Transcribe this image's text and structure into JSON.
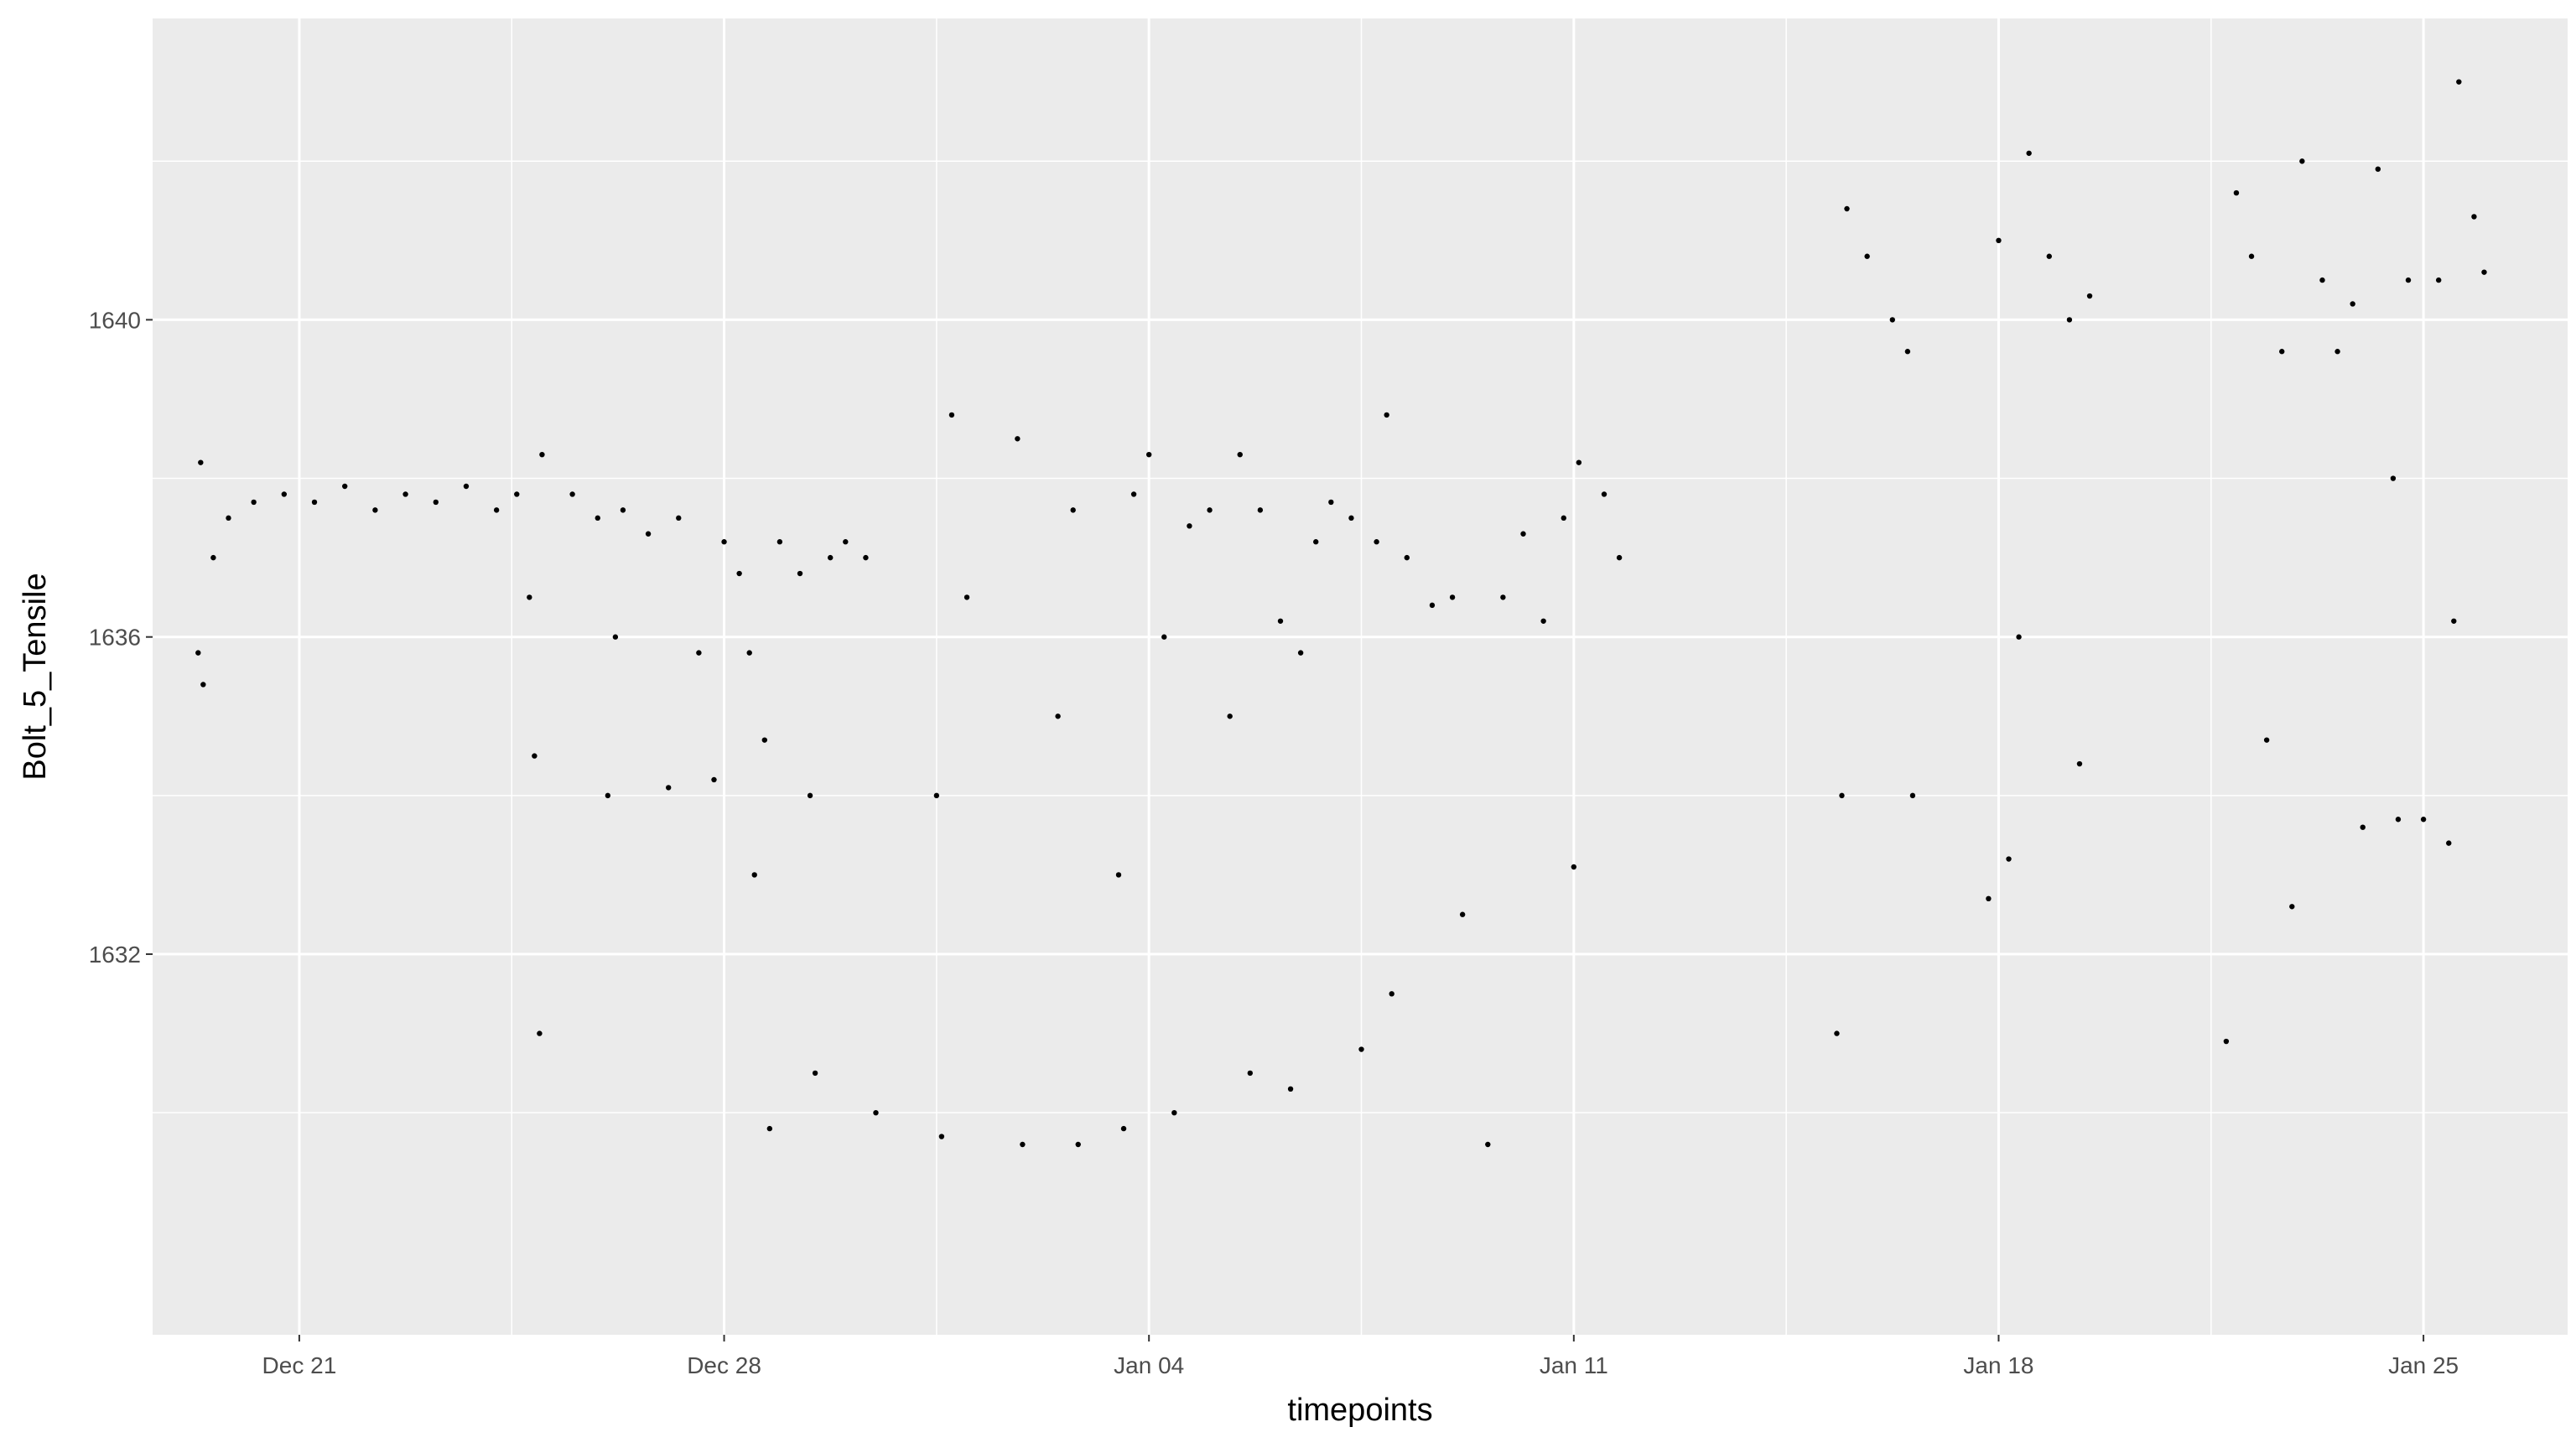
{
  "chart_data": {
    "type": "scatter",
    "title": "",
    "xlabel": "timepoints",
    "ylabel": "Bolt_5_Tensile",
    "x_axis_type": "date",
    "xlim": [
      "2023-12-18T14:00",
      "2024-01-27T09:00"
    ],
    "ylim": [
      1627.2,
      1643.8
    ],
    "x_ticks": [
      {
        "date": "2023-12-21",
        "label": "Dec 21"
      },
      {
        "date": "2023-12-28",
        "label": "Dec 28"
      },
      {
        "date": "2024-01-04",
        "label": "Jan 04"
      },
      {
        "date": "2024-01-11",
        "label": "Jan 11"
      },
      {
        "date": "2024-01-18",
        "label": "Jan 18"
      },
      {
        "date": "2024-01-25",
        "label": "Jan 25"
      }
    ],
    "y_ticks": [
      1632,
      1636,
      1640
    ],
    "y_minor_gridlines": [
      1630,
      1634,
      1638,
      1642
    ],
    "grid": true,
    "panel_background": "#ebebeb",
    "grid_color": "#ffffff",
    "point_color": "#000000",
    "legend": "none",
    "series": [
      {
        "points": [
          [
            "2023-12-19T08:00",
            1635.8
          ],
          [
            "2023-12-19T09:00",
            1638.2
          ],
          [
            "2023-12-19T10:00",
            1635.4
          ],
          [
            "2023-12-19T14:00",
            1637.0
          ],
          [
            "2023-12-19T20:00",
            1637.5
          ],
          [
            "2023-12-20T06:00",
            1637.7
          ],
          [
            "2023-12-20T18:00",
            1637.8
          ],
          [
            "2023-12-21T06:00",
            1637.7
          ],
          [
            "2023-12-21T18:00",
            1637.9
          ],
          [
            "2023-12-22T06:00",
            1637.6
          ],
          [
            "2023-12-22T18:00",
            1637.8
          ],
          [
            "2023-12-23T06:00",
            1637.7
          ],
          [
            "2023-12-23T18:00",
            1637.9
          ],
          [
            "2023-12-24T06:00",
            1637.6
          ],
          [
            "2023-12-24T14:00",
            1637.8
          ],
          [
            "2023-12-24T19:00",
            1636.5
          ],
          [
            "2023-12-24T21:00",
            1634.5
          ],
          [
            "2023-12-24T23:00",
            1631.0
          ],
          [
            "2023-12-25T00:00",
            1638.3
          ],
          [
            "2023-12-25T12:00",
            1637.8
          ],
          [
            "2023-12-25T22:00",
            1637.5
          ],
          [
            "2023-12-26T02:00",
            1634.0
          ],
          [
            "2023-12-26T05:00",
            1636.0
          ],
          [
            "2023-12-26T08:00",
            1637.6
          ],
          [
            "2023-12-26T18:00",
            1637.3
          ],
          [
            "2023-12-27T02:00",
            1634.1
          ],
          [
            "2023-12-27T06:00",
            1637.5
          ],
          [
            "2023-12-27T14:00",
            1635.8
          ],
          [
            "2023-12-27T20:00",
            1634.2
          ],
          [
            "2023-12-28T00:00",
            1637.2
          ],
          [
            "2023-12-28T06:00",
            1636.8
          ],
          [
            "2023-12-28T10:00",
            1635.8
          ],
          [
            "2023-12-28T12:00",
            1633.0
          ],
          [
            "2023-12-28T16:00",
            1634.7
          ],
          [
            "2023-12-28T18:00",
            1629.8
          ],
          [
            "2023-12-28T22:00",
            1637.2
          ],
          [
            "2023-12-29T06:00",
            1636.8
          ],
          [
            "2023-12-29T10:00",
            1634.0
          ],
          [
            "2023-12-29T12:00",
            1630.5
          ],
          [
            "2023-12-29T18:00",
            1637.0
          ],
          [
            "2023-12-30T00:00",
            1637.2
          ],
          [
            "2023-12-30T08:00",
            1637.0
          ],
          [
            "2023-12-30T12:00",
            1630.0
          ],
          [
            "2023-12-31T12:00",
            1634.0
          ],
          [
            "2023-12-31T14:00",
            1629.7
          ],
          [
            "2023-12-31T18:00",
            1638.8
          ],
          [
            "2024-01-01T00:00",
            1636.5
          ],
          [
            "2024-01-01T20:00",
            1638.5
          ],
          [
            "2024-01-01T22:00",
            1629.6
          ],
          [
            "2024-01-02T12:00",
            1635.0
          ],
          [
            "2024-01-02T18:00",
            1637.6
          ],
          [
            "2024-01-02T20:00",
            1629.6
          ],
          [
            "2024-01-03T12:00",
            1633.0
          ],
          [
            "2024-01-03T14:00",
            1629.8
          ],
          [
            "2024-01-03T18:00",
            1637.8
          ],
          [
            "2024-01-04T00:00",
            1638.3
          ],
          [
            "2024-01-04T06:00",
            1636.0
          ],
          [
            "2024-01-04T10:00",
            1630.0
          ],
          [
            "2024-01-04T16:00",
            1637.4
          ],
          [
            "2024-01-05T00:00",
            1637.6
          ],
          [
            "2024-01-05T08:00",
            1635.0
          ],
          [
            "2024-01-05T12:00",
            1638.3
          ],
          [
            "2024-01-05T16:00",
            1630.5
          ],
          [
            "2024-01-05T20:00",
            1637.6
          ],
          [
            "2024-01-06T04:00",
            1636.2
          ],
          [
            "2024-01-06T08:00",
            1630.3
          ],
          [
            "2024-01-06T12:00",
            1635.8
          ],
          [
            "2024-01-06T18:00",
            1637.2
          ],
          [
            "2024-01-07T00:00",
            1637.7
          ],
          [
            "2024-01-07T08:00",
            1637.5
          ],
          [
            "2024-01-07T12:00",
            1630.8
          ],
          [
            "2024-01-07T18:00",
            1637.2
          ],
          [
            "2024-01-07T22:00",
            1638.8
          ],
          [
            "2024-01-08T00:00",
            1631.5
          ],
          [
            "2024-01-08T06:00",
            1637.0
          ],
          [
            "2024-01-08T16:00",
            1636.4
          ],
          [
            "2024-01-09T00:00",
            1636.5
          ],
          [
            "2024-01-09T04:00",
            1632.5
          ],
          [
            "2024-01-09T14:00",
            1629.6
          ],
          [
            "2024-01-09T20:00",
            1636.5
          ],
          [
            "2024-01-10T04:00",
            1637.3
          ],
          [
            "2024-01-10T12:00",
            1636.2
          ],
          [
            "2024-01-10T20:00",
            1637.5
          ],
          [
            "2024-01-11T00:00",
            1633.1
          ],
          [
            "2024-01-11T02:00",
            1638.2
          ],
          [
            "2024-01-11T12:00",
            1637.8
          ],
          [
            "2024-01-11T18:00",
            1637.0
          ],
          [
            "2024-01-15T08:00",
            1631.0
          ],
          [
            "2024-01-15T10:00",
            1634.0
          ],
          [
            "2024-01-15T12:00",
            1641.4
          ],
          [
            "2024-01-15T20:00",
            1640.8
          ],
          [
            "2024-01-16T06:00",
            1640.0
          ],
          [
            "2024-01-16T12:00",
            1639.6
          ],
          [
            "2024-01-16T14:00",
            1634.0
          ],
          [
            "2024-01-17T20:00",
            1632.7
          ],
          [
            "2024-01-18T00:00",
            1641.0
          ],
          [
            "2024-01-18T04:00",
            1633.2
          ],
          [
            "2024-01-18T08:00",
            1636.0
          ],
          [
            "2024-01-18T12:00",
            1642.1
          ],
          [
            "2024-01-18T20:00",
            1640.8
          ],
          [
            "2024-01-19T04:00",
            1640.0
          ],
          [
            "2024-01-19T08:00",
            1634.4
          ],
          [
            "2024-01-19T12:00",
            1640.3
          ],
          [
            "2024-01-21T18:00",
            1630.9
          ],
          [
            "2024-01-21T22:00",
            1641.6
          ],
          [
            "2024-01-22T04:00",
            1640.8
          ],
          [
            "2024-01-22T10:00",
            1634.7
          ],
          [
            "2024-01-22T16:00",
            1639.6
          ],
          [
            "2024-01-22T20:00",
            1632.6
          ],
          [
            "2024-01-23T00:00",
            1642.0
          ],
          [
            "2024-01-23T08:00",
            1640.5
          ],
          [
            "2024-01-23T14:00",
            1639.6
          ],
          [
            "2024-01-23T20:00",
            1640.2
          ],
          [
            "2024-01-24T00:00",
            1633.6
          ],
          [
            "2024-01-24T06:00",
            1641.9
          ],
          [
            "2024-01-24T12:00",
            1638.0
          ],
          [
            "2024-01-24T14:00",
            1633.7
          ],
          [
            "2024-01-24T18:00",
            1640.5
          ],
          [
            "2024-01-25T00:00",
            1633.7
          ],
          [
            "2024-01-25T06:00",
            1640.5
          ],
          [
            "2024-01-25T10:00",
            1633.4
          ],
          [
            "2024-01-25T12:00",
            1636.2
          ],
          [
            "2024-01-25T14:00",
            1643.0
          ],
          [
            "2024-01-25T20:00",
            1641.3
          ],
          [
            "2024-01-26T00:00",
            1640.6
          ]
        ]
      }
    ]
  }
}
